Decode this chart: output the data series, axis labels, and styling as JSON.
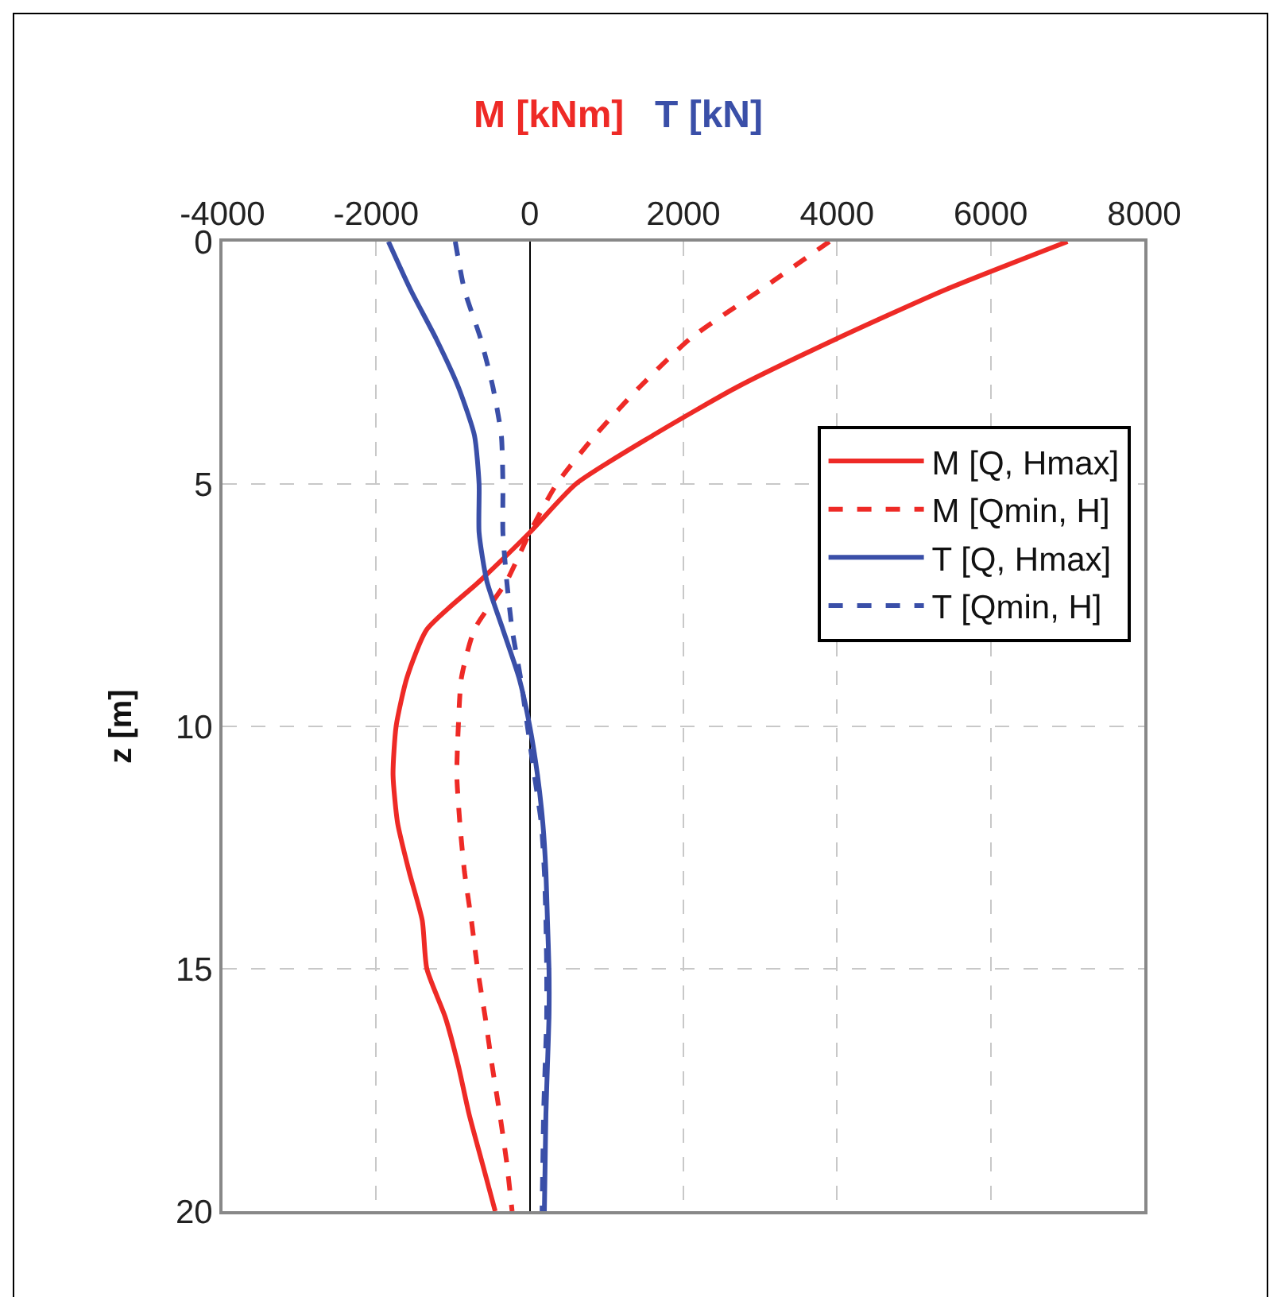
{
  "chart_data": {
    "type": "line",
    "xlabel": "M [kNm]",
    "ylabel": "z [m]",
    "annotations": [
      "T [kN]"
    ],
    "series": [
      {
        "name": "M [Q, Hmax]",
        "color": "#ee2a26",
        "line_style": "solid",
        "x": [
          7000,
          5400,
          4000,
          2700,
          1600,
          600,
          0,
          -650,
          -1340,
          -1600,
          -1740,
          -1780,
          -1720,
          -1570,
          -1400,
          -1340,
          -1100,
          -930,
          -790,
          -620,
          -450
        ],
        "values": [
          0,
          1,
          2,
          3,
          4,
          5,
          6,
          7,
          8,
          9,
          10,
          11,
          12,
          13,
          14,
          15,
          16,
          17,
          18,
          19,
          20
        ]
      },
      {
        "name": "M [Qmin, H]",
        "color": "#ee2a26",
        "line_style": "dashed",
        "x": [
          3900,
          3000,
          2090,
          1430,
          850,
          350,
          0,
          -300,
          -720,
          -890,
          -930,
          -950,
          -910,
          -850,
          -760,
          -680,
          -580,
          -490,
          -390,
          -300,
          -230
        ],
        "values": [
          0,
          1,
          2,
          3,
          4,
          5,
          6,
          7,
          8,
          9,
          10,
          11,
          12,
          13,
          14,
          15,
          16,
          17,
          18,
          19,
          20
        ]
      },
      {
        "name": "T [Q, Hmax]",
        "color": "#3a4fa8",
        "line_style": "solid",
        "x": [
          -1840,
          -1550,
          -1220,
          -930,
          -720,
          -660,
          -660,
          -560,
          -350,
          -140,
          0,
          100,
          170,
          210,
          230,
          250,
          250,
          230,
          210,
          200,
          190
        ],
        "values": [
          0,
          1,
          2,
          3,
          4,
          5,
          6,
          7,
          8,
          9,
          10,
          11,
          12,
          13,
          14,
          15,
          16,
          17,
          18,
          19,
          20
        ]
      },
      {
        "name": "T [Qmin, H]",
        "color": "#3a4fa8",
        "line_style": "dashed",
        "x": [
          -970,
          -850,
          -640,
          -480,
          -370,
          -350,
          -350,
          -300,
          -230,
          -120,
          -30,
          60,
          150,
          190,
          210,
          220,
          220,
          200,
          180,
          170,
          160
        ],
        "values": [
          0,
          1,
          2,
          3,
          4,
          5,
          6,
          7,
          8,
          9,
          10,
          11,
          12,
          13,
          14,
          15,
          16,
          17,
          18,
          19,
          20
        ]
      }
    ],
    "xlim": [
      -4000,
      8000
    ],
    "xticks": [
      -4000,
      -2000,
      0,
      2000,
      4000,
      6000,
      8000
    ],
    "ylim": [
      20,
      0
    ],
    "yticks": [
      0,
      5,
      10,
      15,
      20
    ],
    "grid": true,
    "legend": "top right",
    "marker": "none"
  }
}
